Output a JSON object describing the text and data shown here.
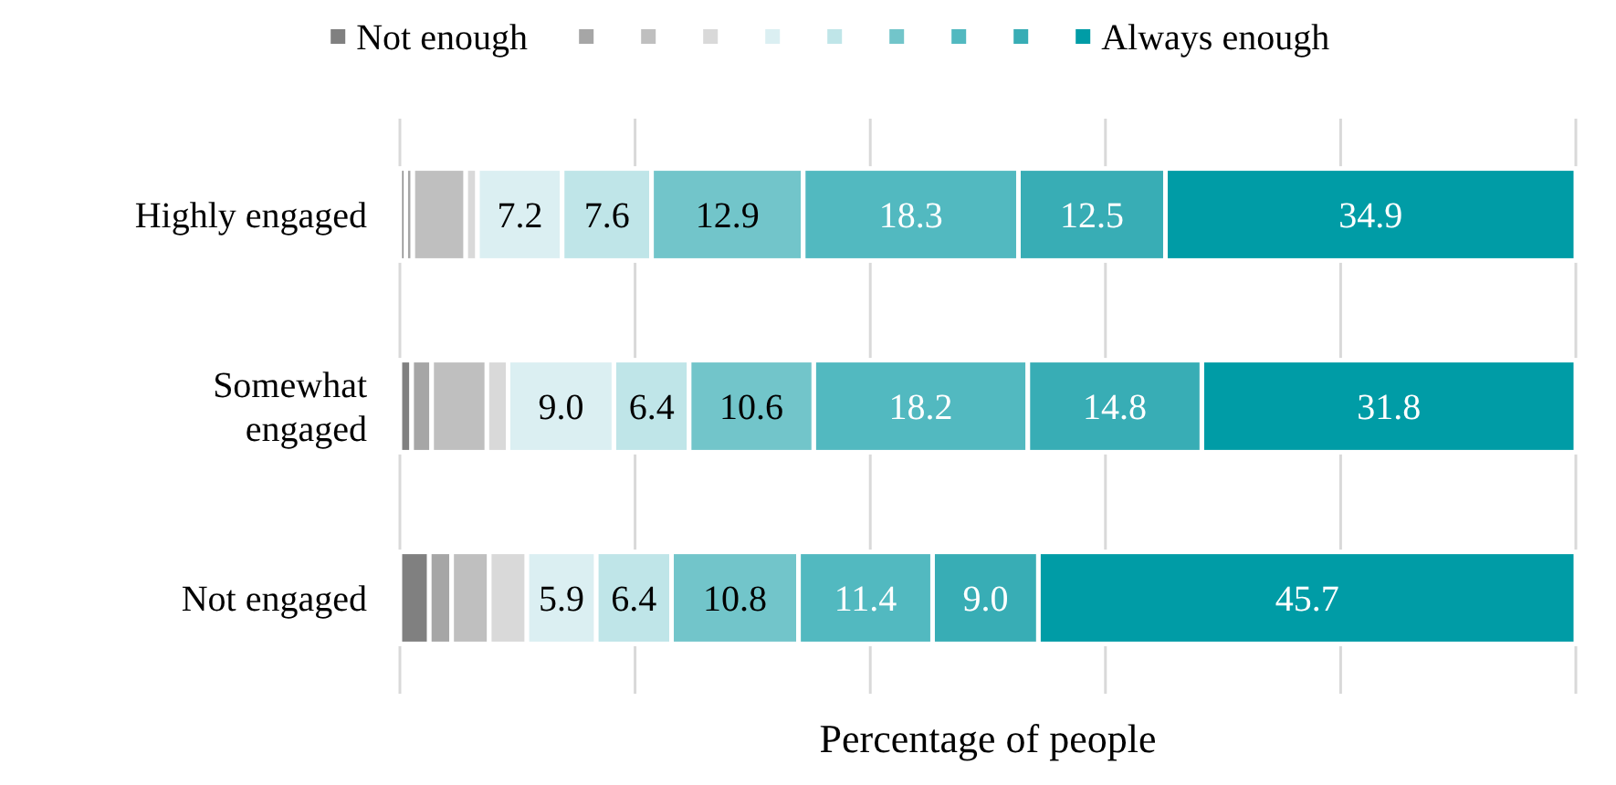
{
  "chart_data": {
    "type": "bar",
    "orientation": "horizontal",
    "stacked": true,
    "xlabel": "Percentage of people",
    "categories": [
      "Highly engaged",
      "Somewhat engaged",
      "Not engaged"
    ],
    "xlim": [
      0,
      100
    ],
    "xticks": [
      {
        "value": 0,
        "label": null
      },
      {
        "value": 20,
        "label": null
      },
      {
        "value": 40,
        "label": null
      },
      {
        "value": 60,
        "label": null
      },
      {
        "value": 80,
        "label": null
      },
      {
        "value": 100,
        "label": null
      }
    ],
    "tick_labels": "y",
    "grid": "x",
    "legend": "top",
    "series": [
      {
        "name": "Not enough",
        "color": "#808080",
        "values": [
          0.5,
          1.0,
          2.5
        ]
      },
      {
        "color": "#a6a6a6",
        "values": [
          0.6,
          1.7,
          1.9
        ]
      },
      {
        "color": "#bfbfbf",
        "values": [
          4.5,
          4.7,
          3.2
        ]
      },
      {
        "color": "#d9d9d9",
        "values": [
          1.0,
          1.8,
          3.2
        ]
      },
      {
        "color": "#dbeff2",
        "values": [
          7.2,
          9.0,
          5.9
        ],
        "value_labels": [
          "7.2",
          "9.0",
          "5.9"
        ]
      },
      {
        "color": "#bfe5e8",
        "values": [
          7.6,
          6.4,
          6.4
        ],
        "value_labels": [
          "7.6",
          "6.4",
          "6.4"
        ]
      },
      {
        "color": "#72c5ca",
        "values": [
          12.9,
          10.6,
          10.8
        ],
        "value_labels": [
          "12.9",
          "10.6",
          "10.8"
        ]
      },
      {
        "color": "#52b9c0",
        "values": [
          18.3,
          18.2,
          11.4
        ],
        "value_labels": [
          "18.3",
          "18.2",
          "11.4"
        ]
      },
      {
        "color": "#38adb5",
        "values": [
          12.5,
          14.8,
          9.0
        ],
        "value_labels": [
          "12.5",
          "14.8",
          "9.0"
        ]
      },
      {
        "name": "Always enough",
        "color": "#009ca6",
        "values": [
          34.9,
          31.8,
          45.7
        ],
        "value_labels": [
          "34.9",
          "31.8",
          "45.7"
        ]
      }
    ]
  }
}
